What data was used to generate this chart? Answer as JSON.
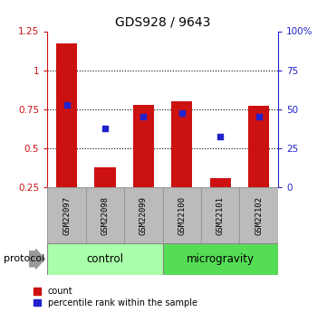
{
  "title": "GDS928 / 9643",
  "samples": [
    "GSM22097",
    "GSM22098",
    "GSM22099",
    "GSM22100",
    "GSM22101",
    "GSM22102"
  ],
  "bar_bottoms": [
    0.25,
    0.25,
    0.25,
    0.25,
    0.25,
    0.25
  ],
  "bar_tops": [
    1.17,
    0.38,
    0.78,
    0.8,
    0.31,
    0.77
  ],
  "blue_dots": [
    0.775,
    0.625,
    0.7,
    0.725,
    0.575,
    0.7
  ],
  "bar_color": "#cc1111",
  "dot_color": "#2222cc",
  "ylim_left": [
    0.25,
    1.25
  ],
  "ylim_right": [
    0,
    100
  ],
  "yticks_left": [
    0.25,
    0.5,
    0.75,
    1.0,
    1.25
  ],
  "yticks_right": [
    0,
    25,
    50,
    75,
    100
  ],
  "ytick_labels_left": [
    "0.25",
    "0.5",
    "0.75",
    "1",
    "1.25"
  ],
  "ytick_labels_right": [
    "0",
    "25",
    "50",
    "75",
    "100%"
  ],
  "dotted_lines": [
    0.5,
    0.75,
    1.0
  ],
  "groups": [
    {
      "label": "control",
      "start": 0,
      "end": 2,
      "color": "#aaffaa"
    },
    {
      "label": "microgravity",
      "start": 3,
      "end": 5,
      "color": "#55dd55"
    }
  ],
  "protocol_label": "protocol",
  "legend_items": [
    {
      "color": "#cc1111",
      "label": "count"
    },
    {
      "color": "#2222cc",
      "label": "percentile rank within the sample"
    }
  ],
  "left_axis_color": "#cc1111",
  "right_axis_color": "#2222cc",
  "sample_box_color": "#bbbbbb",
  "sample_box_edge_color": "#999999",
  "bar_width": 0.55,
  "xlim": [
    -0.5,
    5.5
  ]
}
